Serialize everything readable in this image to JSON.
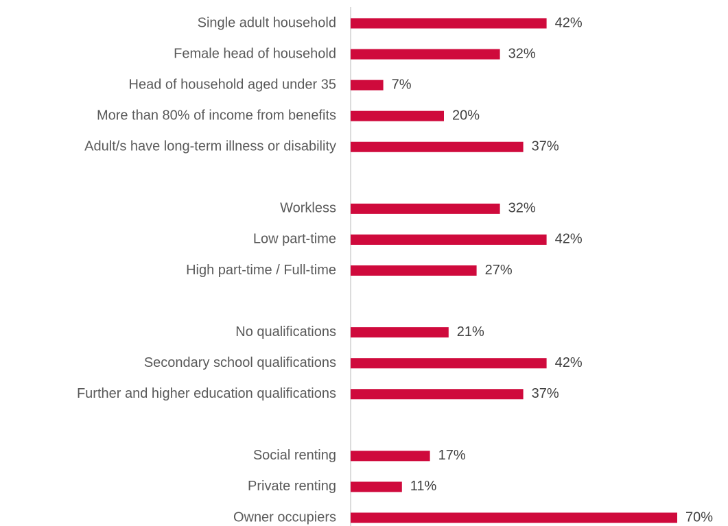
{
  "chart_data": {
    "type": "barh",
    "categories": [
      "Single adult household",
      "Female head of household",
      "Head of household aged under 35",
      "More than 80% of income from benefits",
      "Adult/s have long-term illness or disability",
      null,
      "Workless",
      "Low part-time",
      "High part-time / Full-time",
      null,
      "No qualifications",
      "Secondary school qualifications",
      "Further and higher education qualifications",
      null,
      "Social renting",
      "Private renting",
      "Owner occupiers"
    ],
    "values": [
      42,
      32,
      7,
      20,
      37,
      null,
      32,
      42,
      27,
      null,
      21,
      42,
      37,
      null,
      17,
      11,
      70
    ],
    "value_labels": [
      "42%",
      "32%",
      "7%",
      "20%",
      "37%",
      null,
      "32%",
      "42%",
      "27%",
      null,
      "21%",
      "42%",
      "37%",
      null,
      "17%",
      "11%",
      "70%"
    ],
    "color": "#cf0a3c"
  }
}
